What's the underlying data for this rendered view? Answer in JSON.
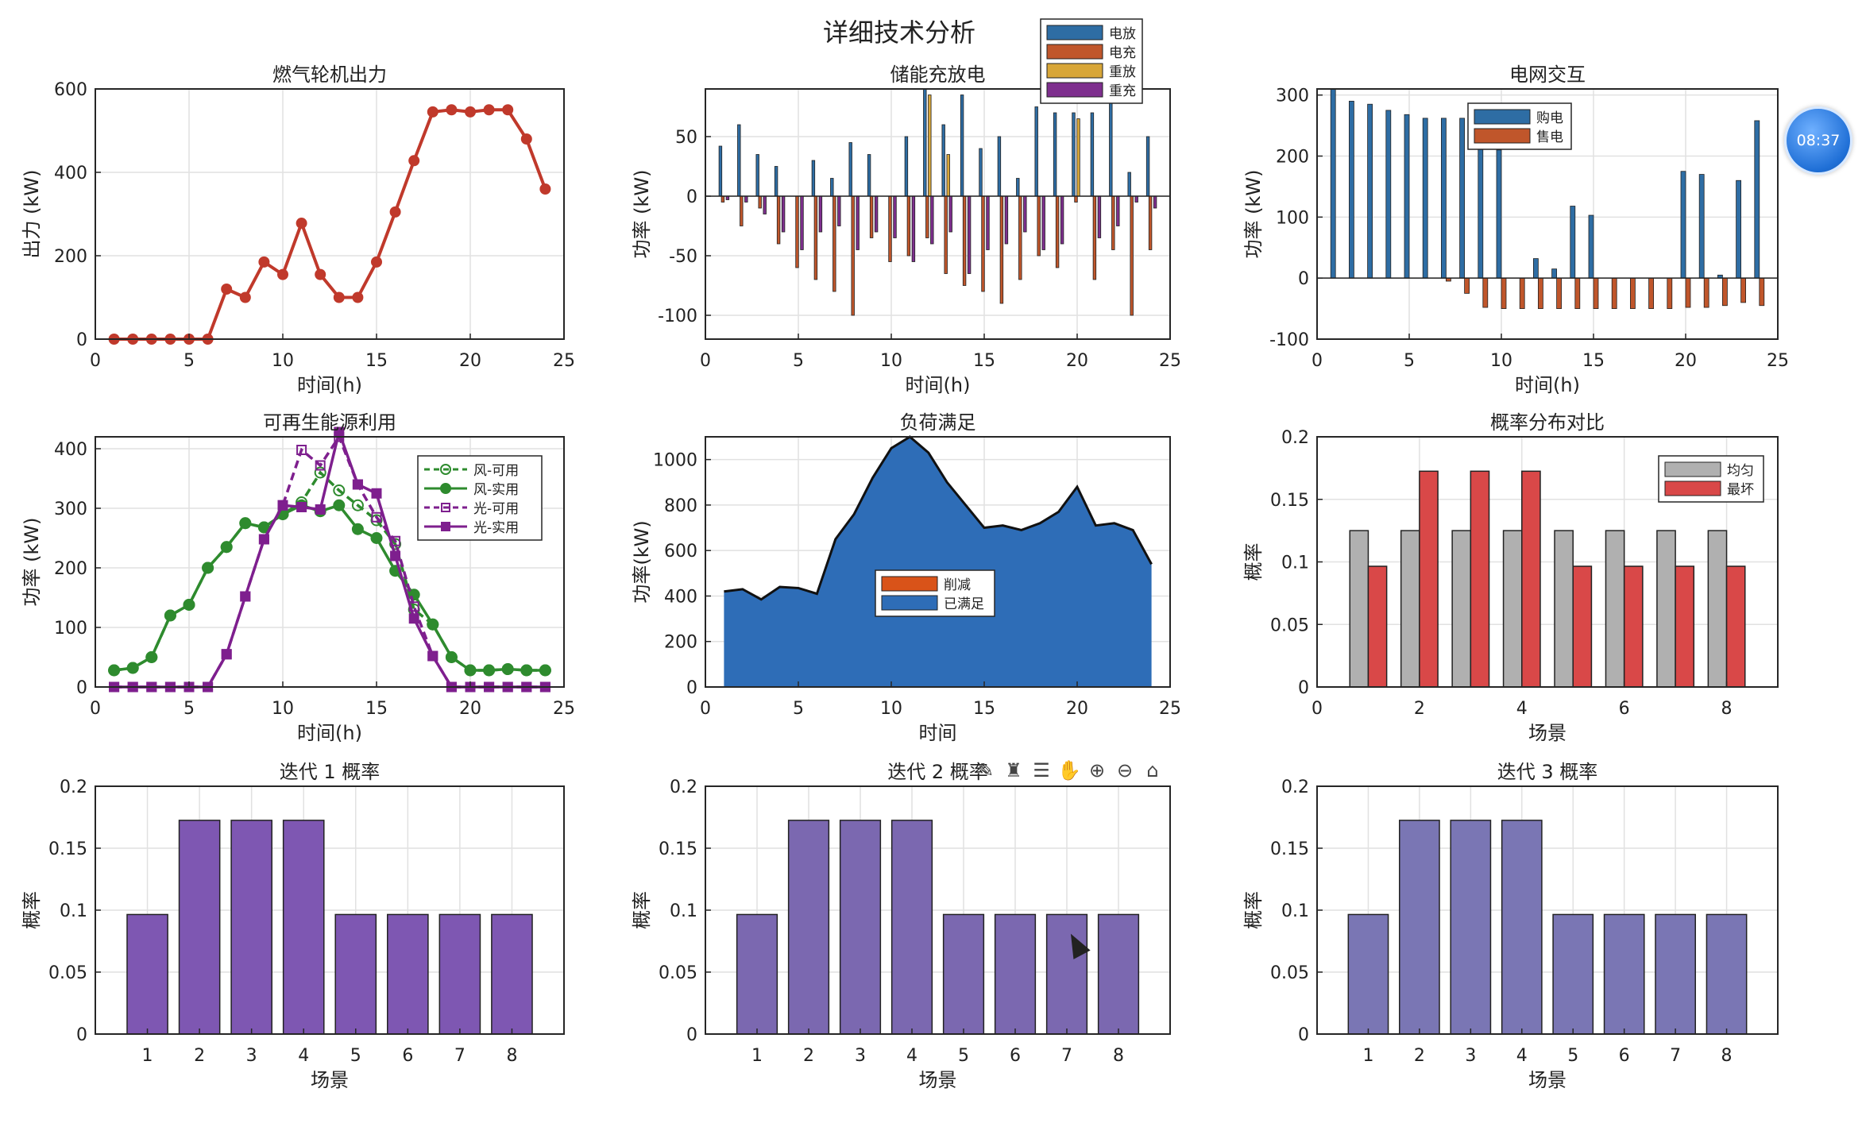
{
  "figure": {
    "suptitle": "详细技术分析"
  },
  "overlay": {
    "clock": "08:37",
    "toolbar": [
      {
        "name": "edit-plot-icon",
        "glyph": "✎"
      },
      {
        "name": "brush-icon",
        "glyph": "♜"
      },
      {
        "name": "legend-icon",
        "glyph": "☰"
      },
      {
        "name": "pan-hand-icon",
        "glyph": "✋"
      },
      {
        "name": "zoom-in-icon",
        "glyph": "⊕"
      },
      {
        "name": "zoom-out-icon",
        "glyph": "⊖"
      },
      {
        "name": "home-icon",
        "glyph": "⌂"
      }
    ]
  },
  "colors": {
    "gas": "#C0392B",
    "discharge": "#2E6DA4",
    "charge": "#C0562B",
    "re_discharge": "#D8A638",
    "re_charge": "#7E2F8E",
    "buy": "#2E6DA4",
    "sell": "#C0562B",
    "wind": "#2E8B2E",
    "pv": "#7E1F8E",
    "load": "#2E6DB7",
    "cut": "#D95319",
    "uniform": "#B0B0B0",
    "worst": "#D94848",
    "iter1": "#7E57B2",
    "iter2": "#7B68B0",
    "iter3": "#7A76B4"
  },
  "chart_data": [
    {
      "id": "gas",
      "type": "line",
      "title": "燃气轮机出力",
      "xlabel": "时间(h)",
      "ylabel": "出力 (kW)",
      "xlim": [
        0,
        25
      ],
      "ylim": [
        0,
        600
      ],
      "xticks": [
        0,
        5,
        10,
        15,
        20,
        25
      ],
      "yticks": [
        0,
        200,
        400,
        600
      ],
      "series": [
        {
          "name": "燃气轮机出力",
          "x": [
            1,
            2,
            3,
            4,
            5,
            6,
            7,
            8,
            9,
            10,
            11,
            12,
            13,
            14,
            15,
            16,
            17,
            18,
            19,
            20,
            21,
            22,
            23,
            24
          ],
          "values": [
            0,
            0,
            0,
            0,
            0,
            0,
            120,
            100,
            185,
            155,
            278,
            155,
            100,
            100,
            185,
            305,
            428,
            545,
            550,
            545,
            550,
            550,
            480,
            360
          ]
        }
      ]
    },
    {
      "id": "storage",
      "type": "bar",
      "title": "储能充放电",
      "xlabel": "时间(h)",
      "ylabel": "功率 (kW)",
      "xlim": [
        0,
        25
      ],
      "ylim": [
        -120,
        90
      ],
      "xticks": [
        0,
        5,
        10,
        15,
        20,
        25
      ],
      "yticks": [
        -100,
        -50,
        0,
        50
      ],
      "legend": [
        "电放",
        "电充",
        "重放",
        "重充"
      ],
      "series": [
        {
          "name": "电放",
          "values": [
            42,
            60,
            35,
            25,
            0,
            30,
            15,
            45,
            35,
            0,
            50,
            90,
            60,
            85,
            40,
            50,
            15,
            75,
            70,
            70,
            70,
            95,
            20,
            50
          ]
        },
        {
          "name": "电充",
          "values": [
            -5,
            -25,
            -10,
            -40,
            -60,
            -70,
            -80,
            -100,
            -35,
            -55,
            -50,
            -35,
            -65,
            -75,
            -80,
            -90,
            -70,
            -50,
            -60,
            -5,
            -70,
            -45,
            -100,
            -45
          ]
        },
        {
          "name": "重放",
          "values": [
            0,
            0,
            0,
            0,
            0,
            0,
            0,
            0,
            0,
            0,
            0,
            85,
            35,
            0,
            0,
            0,
            0,
            0,
            0,
            65,
            0,
            0,
            0,
            0
          ]
        },
        {
          "name": "重充",
          "values": [
            -3,
            -5,
            -15,
            -30,
            -45,
            -30,
            -25,
            -45,
            -30,
            -35,
            -55,
            -40,
            -30,
            -65,
            -45,
            -40,
            -30,
            -45,
            -40,
            0,
            -35,
            -25,
            -5,
            -10
          ]
        }
      ]
    },
    {
      "id": "grid",
      "type": "bar",
      "title": "电网交互",
      "xlabel": "时间(h)",
      "ylabel": "功率 (kW)",
      "xlim": [
        0,
        25
      ],
      "ylim": [
        -100,
        310
      ],
      "xticks": [
        0,
        5,
        10,
        15,
        20,
        25
      ],
      "yticks": [
        -100,
        0,
        100,
        200,
        300
      ],
      "legend": [
        "购电",
        "售电"
      ],
      "series": [
        {
          "name": "购电",
          "values": [
            310,
            290,
            285,
            275,
            268,
            262,
            262,
            262,
            230,
            210,
            0,
            32,
            15,
            118,
            103,
            0,
            0,
            0,
            0,
            175,
            170,
            5,
            160,
            258
          ]
        },
        {
          "name": "售电",
          "values": [
            0,
            0,
            0,
            0,
            0,
            0,
            -5,
            -25,
            -48,
            -50,
            -50,
            -50,
            -50,
            -50,
            -50,
            -50,
            -50,
            -50,
            -50,
            -48,
            -48,
            -45,
            -40,
            -45
          ]
        }
      ]
    },
    {
      "id": "renew",
      "type": "line",
      "title": "可再生能源利用",
      "xlabel": "时间(h)",
      "ylabel": "功率 (kW)",
      "xlim": [
        0,
        25
      ],
      "ylim": [
        0,
        420
      ],
      "xticks": [
        0,
        5,
        10,
        15,
        20,
        25
      ],
      "yticks": [
        0,
        100,
        200,
        300,
        400
      ],
      "series": [
        {
          "name": "风-可用",
          "style": "dashed",
          "x": [
            1,
            2,
            3,
            4,
            5,
            6,
            7,
            8,
            9,
            10,
            11,
            12,
            13,
            14,
            15,
            16,
            17,
            18,
            19,
            20,
            21,
            22,
            23,
            24
          ],
          "values": [
            28,
            32,
            50,
            120,
            138,
            200,
            235,
            275,
            268,
            290,
            310,
            360,
            330,
            305,
            280,
            240,
            130,
            105,
            50,
            28,
            28,
            30,
            28,
            28
          ]
        },
        {
          "name": "风-实用",
          "style": "solid",
          "x": [
            1,
            2,
            3,
            4,
            5,
            6,
            7,
            8,
            9,
            10,
            11,
            12,
            13,
            14,
            15,
            16,
            17,
            18,
            19,
            20,
            21,
            22,
            23,
            24
          ],
          "values": [
            28,
            32,
            50,
            120,
            138,
            200,
            235,
            275,
            268,
            290,
            305,
            295,
            305,
            265,
            250,
            195,
            155,
            105,
            50,
            28,
            28,
            30,
            28,
            28
          ]
        },
        {
          "name": "光-可用",
          "style": "dashed",
          "x": [
            1,
            2,
            3,
            4,
            5,
            6,
            7,
            8,
            9,
            10,
            11,
            12,
            13,
            14,
            15,
            16,
            17,
            18,
            19,
            20,
            21,
            22,
            23,
            24
          ],
          "values": [
            0,
            0,
            0,
            0,
            0,
            0,
            55,
            152,
            248,
            305,
            398,
            372,
            420,
            340,
            285,
            245,
            135,
            52,
            0,
            0,
            0,
            0,
            0,
            0
          ]
        },
        {
          "name": "光-实用",
          "style": "solid",
          "x": [
            1,
            2,
            3,
            4,
            5,
            6,
            7,
            8,
            9,
            10,
            11,
            12,
            13,
            14,
            15,
            16,
            17,
            18,
            19,
            20,
            21,
            22,
            23,
            24
          ],
          "values": [
            0,
            0,
            0,
            0,
            0,
            0,
            55,
            152,
            248,
            305,
            302,
            298,
            428,
            340,
            325,
            220,
            115,
            52,
            0,
            0,
            0,
            0,
            0,
            0
          ]
        }
      ]
    },
    {
      "id": "load",
      "type": "area",
      "title": "负荷满足",
      "xlabel": "时间",
      "ylabel": "功率(kW)",
      "xlim": [
        0,
        25
      ],
      "ylim": [
        0,
        1100
      ],
      "xticks": [
        0,
        5,
        10,
        15,
        20,
        25
      ],
      "yticks": [
        0,
        200,
        400,
        600,
        800,
        1000
      ],
      "legend": [
        "削减",
        "已满足"
      ],
      "series": [
        {
          "name": "已满足",
          "x": [
            1,
            2,
            3,
            4,
            5,
            6,
            7,
            8,
            9,
            10,
            11,
            12,
            13,
            14,
            15,
            16,
            17,
            18,
            19,
            20,
            21,
            22,
            23,
            24
          ],
          "values": [
            420,
            430,
            385,
            440,
            435,
            410,
            650,
            760,
            920,
            1050,
            1100,
            1030,
            900,
            800,
            700,
            710,
            690,
            720,
            770,
            880,
            710,
            720,
            690,
            540
          ]
        },
        {
          "name": "削减",
          "x": [
            1,
            2,
            3,
            4,
            5,
            6,
            7,
            8,
            9,
            10,
            11,
            12,
            13,
            14,
            15,
            16,
            17,
            18,
            19,
            20,
            21,
            22,
            23,
            24
          ],
          "values": [
            0,
            0,
            0,
            0,
            0,
            0,
            0,
            0,
            0,
            0,
            0,
            0,
            0,
            0,
            0,
            0,
            0,
            0,
            0,
            0,
            0,
            0,
            0,
            0
          ]
        }
      ]
    },
    {
      "id": "compare",
      "type": "bar",
      "title": "概率分布对比",
      "xlabel": "场景",
      "ylabel": "概率",
      "xlim": [
        0,
        9
      ],
      "ylim": [
        0,
        0.2
      ],
      "xticks": [
        0,
        2,
        4,
        6,
        8
      ],
      "yticks": [
        0,
        0.05,
        0.1,
        0.15,
        0.2
      ],
      "categories": [
        1,
        2,
        3,
        4,
        5,
        6,
        7,
        8
      ],
      "legend": [
        "均匀",
        "最坏"
      ],
      "series": [
        {
          "name": "均匀",
          "values": [
            0.125,
            0.125,
            0.125,
            0.125,
            0.125,
            0.125,
            0.125,
            0.125
          ]
        },
        {
          "name": "最坏",
          "values": [
            0.0965,
            0.1725,
            0.1725,
            0.1725,
            0.0965,
            0.0965,
            0.0965,
            0.0965
          ]
        }
      ]
    },
    {
      "id": "iter1",
      "type": "bar",
      "title": "迭代 1 概率",
      "xlabel": "场景",
      "ylabel": "概率",
      "xlim": [
        0,
        9
      ],
      "ylim": [
        0,
        0.2
      ],
      "xticks": [
        1,
        2,
        3,
        4,
        5,
        6,
        7,
        8
      ],
      "yticks": [
        0,
        0.05,
        0.1,
        0.15,
        0.2
      ],
      "categories": [
        1,
        2,
        3,
        4,
        5,
        6,
        7,
        8
      ],
      "series": [
        {
          "name": "迭代 1",
          "values": [
            0.0965,
            0.1725,
            0.1725,
            0.1725,
            0.0965,
            0.0965,
            0.0965,
            0.0965
          ]
        }
      ]
    },
    {
      "id": "iter2",
      "type": "bar",
      "title": "迭代 2 概率",
      "xlabel": "场景",
      "ylabel": "概率",
      "xlim": [
        0,
        9
      ],
      "ylim": [
        0,
        0.2
      ],
      "xticks": [
        1,
        2,
        3,
        4,
        5,
        6,
        7,
        8
      ],
      "yticks": [
        0,
        0.05,
        0.1,
        0.15,
        0.2
      ],
      "categories": [
        1,
        2,
        3,
        4,
        5,
        6,
        7,
        8
      ],
      "series": [
        {
          "name": "迭代 2",
          "values": [
            0.0965,
            0.1725,
            0.1725,
            0.1725,
            0.0965,
            0.0965,
            0.0965,
            0.0965
          ]
        }
      ]
    },
    {
      "id": "iter3",
      "type": "bar",
      "title": "迭代 3 概率",
      "xlabel": "场景",
      "ylabel": "概率",
      "xlim": [
        0,
        9
      ],
      "ylim": [
        0,
        0.2
      ],
      "xticks": [
        1,
        2,
        3,
        4,
        5,
        6,
        7,
        8
      ],
      "yticks": [
        0,
        0.05,
        0.1,
        0.15,
        0.2
      ],
      "categories": [
        1,
        2,
        3,
        4,
        5,
        6,
        7,
        8
      ],
      "series": [
        {
          "name": "迭代 3",
          "values": [
            0.0965,
            0.1725,
            0.1725,
            0.1725,
            0.0965,
            0.0965,
            0.0965,
            0.0965
          ]
        }
      ]
    }
  ]
}
